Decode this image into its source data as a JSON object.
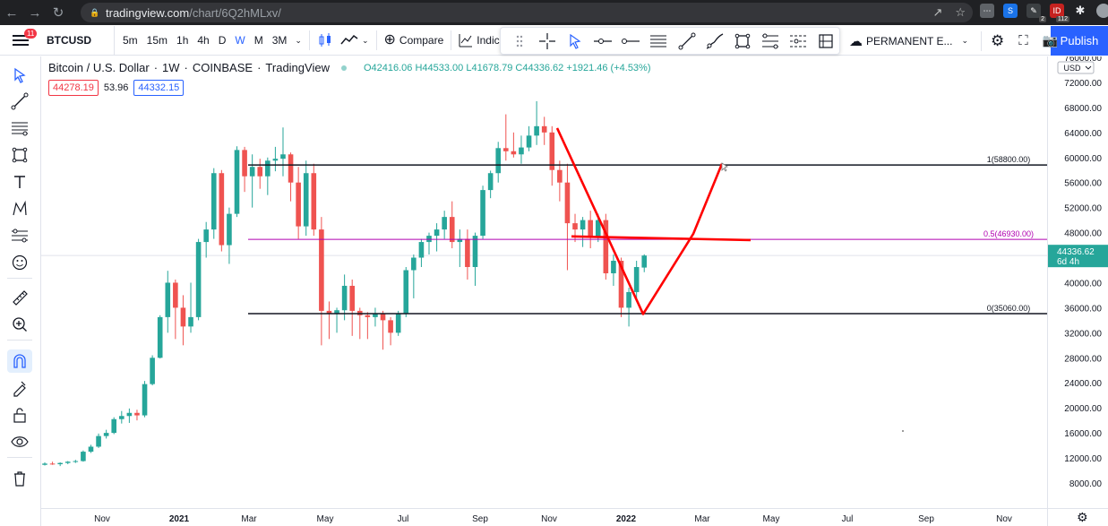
{
  "browser": {
    "host": "tradingview.com",
    "path": "/chart/6Q2hMLxv/",
    "ext_badge_1": "2",
    "ext_badge_2": "112"
  },
  "toolbar": {
    "notifications": "11",
    "symbol": "BTCUSD",
    "intervals": [
      "5m",
      "15m",
      "1h",
      "4h",
      "D",
      "W",
      "M",
      "3M"
    ],
    "active_interval": "W",
    "compare_label": "Compare",
    "indicators_label": "Indicato",
    "layout_name": "PERMANENT E...",
    "publish_label": "Publish"
  },
  "legend": {
    "title": "Bitcoin / U.S. Dollar",
    "interval": "1W",
    "exchange": "COINBASE",
    "source": "TradingView",
    "open": "O42416.06",
    "high": "H44533.00",
    "low": "L41678.79",
    "close": "C44336.62",
    "change": "+1921.46 (+4.53%)",
    "sell_price": "44278.19",
    "spread": "53.96",
    "buy_price": "44332.15"
  },
  "price_axis": {
    "currency": "USD",
    "labels": [
      "76000.00",
      "72000.00",
      "68000.00",
      "64000.00",
      "60000.00",
      "56000.00",
      "52000.00",
      "48000.00",
      "44000.00",
      "40000.00",
      "36000.00",
      "32000.00",
      "28000.00",
      "24000.00",
      "20000.00",
      "16000.00",
      "12000.00",
      "8000.00"
    ],
    "current_price": "44336.62",
    "countdown": "6d 4h"
  },
  "time_axis": {
    "labels": [
      "Nov",
      "2021",
      "Mar",
      "May",
      "Jul",
      "Sep",
      "Nov",
      "2022",
      "Mar",
      "May",
      "Jul",
      "Sep",
      "Nov"
    ]
  },
  "fib_labels": {
    "level_1": "1(58800.00)",
    "level_05": "0.5(46930.00)",
    "level_0": "0(35060.00)"
  },
  "colors": {
    "up": "#26a69a",
    "down": "#ef5350",
    "fib_mid": "#b000b0",
    "drawing": "#ff0000",
    "accent": "#2962ff"
  },
  "chart_data": {
    "type": "candlestick",
    "title": "",
    "symbol": "BTCUSD",
    "interval": "1W",
    "ylim": [
      6000,
      78000
    ],
    "fib_levels": [
      {
        "ratio": 1,
        "price": 58800
      },
      {
        "ratio": 0.5,
        "price": 46930
      },
      {
        "ratio": 0,
        "price": 35060
      }
    ],
    "candles": [
      [
        10900,
        11300,
        10800,
        11100
      ],
      [
        11100,
        11400,
        10900,
        11000
      ],
      [
        11000,
        11300,
        10700,
        11200
      ],
      [
        11200,
        11500,
        11000,
        11400
      ],
      [
        11400,
        11700,
        11200,
        11500
      ],
      [
        11500,
        13200,
        11400,
        13000
      ],
      [
        13000,
        14100,
        12800,
        13800
      ],
      [
        13800,
        15900,
        13600,
        15500
      ],
      [
        15500,
        16500,
        15100,
        16000
      ],
      [
        16000,
        18500,
        15800,
        18200
      ],
      [
        18200,
        19500,
        17500,
        18700
      ],
      [
        18700,
        19900,
        17600,
        19200
      ],
      [
        19200,
        19700,
        18000,
        18800
      ],
      [
        18800,
        24300,
        18500,
        23800
      ],
      [
        23800,
        28400,
        23600,
        28000
      ],
      [
        28000,
        34800,
        27900,
        34500
      ],
      [
        34500,
        41900,
        32000,
        40000
      ],
      [
        40000,
        40500,
        31000,
        36000
      ],
      [
        36000,
        38000,
        30000,
        33000
      ],
      [
        33000,
        40000,
        32000,
        34500
      ],
      [
        34500,
        47000,
        34000,
        46500
      ],
      [
        46500,
        49700,
        44000,
        48500
      ],
      [
        48500,
        58300,
        47000,
        57500
      ],
      [
        57500,
        58000,
        45000,
        46000
      ],
      [
        46000,
        52000,
        43000,
        51000
      ],
      [
        51000,
        61800,
        50500,
        61200
      ],
      [
        61200,
        61700,
        54500,
        57000
      ],
      [
        57000,
        60500,
        52000,
        58500
      ],
      [
        58500,
        59800,
        55000,
        57000
      ],
      [
        57000,
        60000,
        54000,
        59500
      ],
      [
        59500,
        61700,
        57800,
        59800
      ],
      [
        59800,
        64800,
        57000,
        60500
      ],
      [
        60500,
        60800,
        53000,
        56000
      ],
      [
        56000,
        58500,
        47000,
        49000
      ],
      [
        49000,
        59500,
        47500,
        57500
      ],
      [
        57500,
        59000,
        47500,
        48500
      ],
      [
        48500,
        50500,
        30000,
        35500
      ],
      [
        35500,
        37000,
        31000,
        35000
      ],
      [
        35000,
        36000,
        32000,
        35600
      ],
      [
        35600,
        41300,
        34000,
        39500
      ],
      [
        39500,
        40500,
        31500,
        35500
      ],
      [
        35500,
        36000,
        31000,
        34800
      ],
      [
        34800,
        35300,
        31000,
        34500
      ],
      [
        34500,
        36000,
        33000,
        35000
      ],
      [
        35000,
        35500,
        29300,
        34000
      ],
      [
        34000,
        34500,
        30000,
        32000
      ],
      [
        32000,
        35500,
        31500,
        35000
      ],
      [
        35000,
        42500,
        34500,
        42000
      ],
      [
        42000,
        44500,
        37500,
        44000
      ],
      [
        44000,
        47000,
        42500,
        46500
      ],
      [
        46500,
        48000,
        44500,
        47500
      ],
      [
        47500,
        49500,
        45000,
        48500
      ],
      [
        48500,
        51500,
        47000,
        50500
      ],
      [
        50500,
        53000,
        45500,
        46500
      ],
      [
        46500,
        48500,
        42500,
        47000
      ],
      [
        47000,
        48500,
        40500,
        42500
      ],
      [
        42500,
        48000,
        39500,
        47500
      ],
      [
        47500,
        55500,
        47000,
        54800
      ],
      [
        54800,
        57900,
        53500,
        57500
      ],
      [
        57500,
        62500,
        56000,
        61500
      ],
      [
        61500,
        66900,
        59500,
        61000
      ],
      [
        61000,
        64000,
        60000,
        60500
      ],
      [
        60500,
        63500,
        59000,
        61600
      ],
      [
        61600,
        65000,
        61000,
        63500
      ],
      [
        63500,
        69000,
        62000,
        65000
      ],
      [
        65000,
        66500,
        62000,
        64000
      ],
      [
        64000,
        65000,
        55500,
        58000
      ],
      [
        58000,
        59500,
        53000,
        56000
      ],
      [
        56000,
        59000,
        42000,
        49500
      ],
      [
        49500,
        51000,
        46500,
        48500
      ],
      [
        48500,
        50500,
        45700,
        50000
      ],
      [
        50000,
        51500,
        45500,
        47200
      ],
      [
        47200,
        51000,
        46500,
        50000
      ],
      [
        50000,
        51000,
        40500,
        41500
      ],
      [
        41500,
        44500,
        39500,
        43500
      ],
      [
        43500,
        44000,
        34500,
        36000
      ],
      [
        36000,
        39200,
        33000,
        38500
      ],
      [
        38500,
        43500,
        37500,
        42500
      ],
      [
        42416,
        44533,
        41678,
        44336
      ]
    ]
  }
}
